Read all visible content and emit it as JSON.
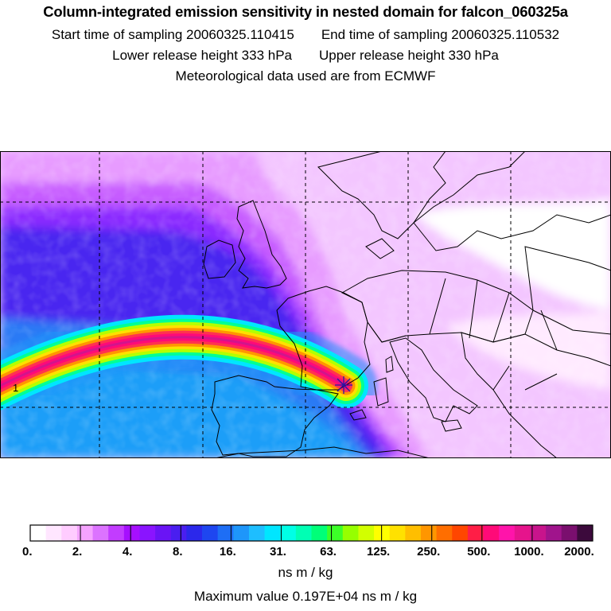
{
  "title": "Column-integrated emission sensitivity in nested domain for falcon_060325a",
  "sampling": {
    "start": "Start time of sampling 20060325.110415",
    "end": "End time of sampling 20060325.110532"
  },
  "release": {
    "lower": "Lower release height  333 hPa",
    "upper": "Upper release height  330 hPa"
  },
  "met_note": "Meteorological data used are from ECMWF",
  "map": {
    "contour_label": "1",
    "release_marker": "star-icon"
  },
  "legend": {
    "tick_labels": [
      "0.",
      "2.",
      "4.",
      "8.",
      "16.",
      "31.",
      "63.",
      "125.",
      "250.",
      "500.",
      "1000.",
      "2000."
    ],
    "units": "ns m / kg",
    "colors": [
      "#ffffff",
      "#ffe6ff",
      "#ffccff",
      "#f5a3ff",
      "#dc73ff",
      "#c23cff",
      "#a60fff",
      "#8a14ff",
      "#6a14f5",
      "#4a1ef0",
      "#2b28eb",
      "#1e46f0",
      "#1e6ef5",
      "#1e96fa",
      "#1ebeff",
      "#00e6ff",
      "#00ffe6",
      "#00ffb4",
      "#00ff78",
      "#3cff28",
      "#96ff00",
      "#d2ff00",
      "#ffff00",
      "#ffe100",
      "#ffbe00",
      "#ff9600",
      "#ff6e00",
      "#ff4600",
      "#ff1e46",
      "#ff0a78",
      "#ff14aa",
      "#e6148c",
      "#c8148c",
      "#a0148c",
      "#7a0f6e",
      "#3c0a3c"
    ]
  },
  "maximum": "Maximum value  0.197E+04 ns m / kg"
}
